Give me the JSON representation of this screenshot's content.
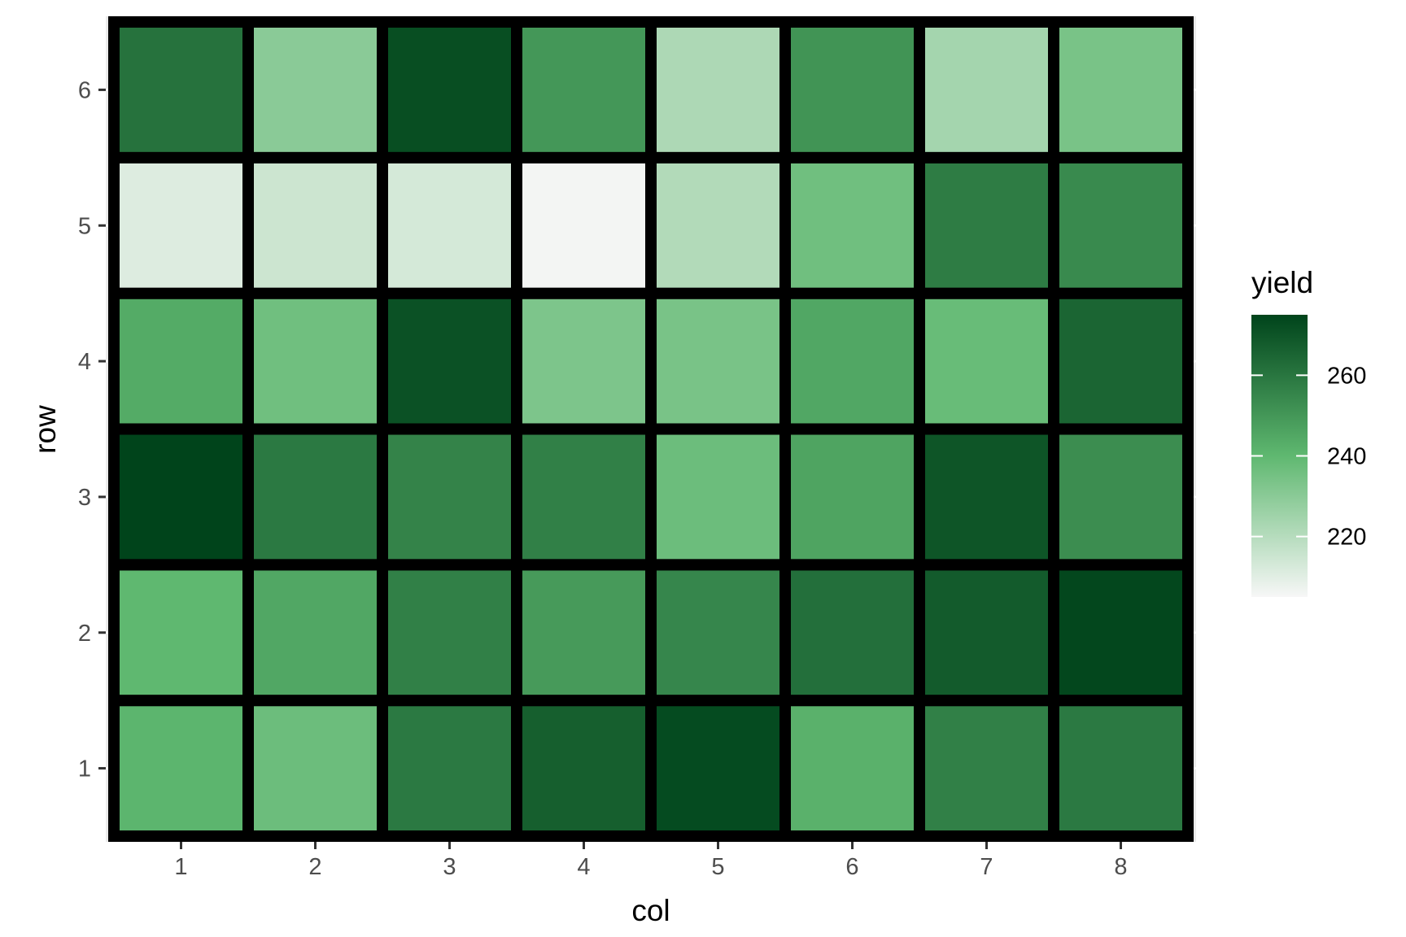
{
  "chart_data": {
    "type": "heatmap",
    "xlabel": "col",
    "ylabel": "row",
    "x_categories": [
      "1",
      "2",
      "3",
      "4",
      "5",
      "6",
      "7",
      "8"
    ],
    "y_categories": [
      "1",
      "2",
      "3",
      "4",
      "5",
      "6"
    ],
    "values": [
      [
        241,
        237,
        259,
        267,
        273,
        242,
        257,
        259
      ],
      [
        240,
        245,
        257,
        249,
        255,
        262,
        268,
        274
      ],
      [
        275,
        259,
        256,
        257,
        237,
        246,
        270,
        253
      ],
      [
        244,
        236,
        271,
        233,
        234,
        245,
        238,
        265
      ],
      [
        211,
        215,
        213,
        206,
        221,
        236,
        258,
        254
      ],
      [
        261,
        230,
        272,
        250,
        222,
        251,
        224,
        234
      ]
    ],
    "color_scale": {
      "title": "yield",
      "min": 205,
      "max": 275,
      "low_color": "#f7f7f7",
      "mid_color": "#5fb870",
      "high_color": "#00441b",
      "ticks": [
        220,
        240,
        260
      ]
    },
    "grid": true,
    "legend_position": "right",
    "tile_border_color": "#000000",
    "panel_background": "#ebebeb"
  }
}
